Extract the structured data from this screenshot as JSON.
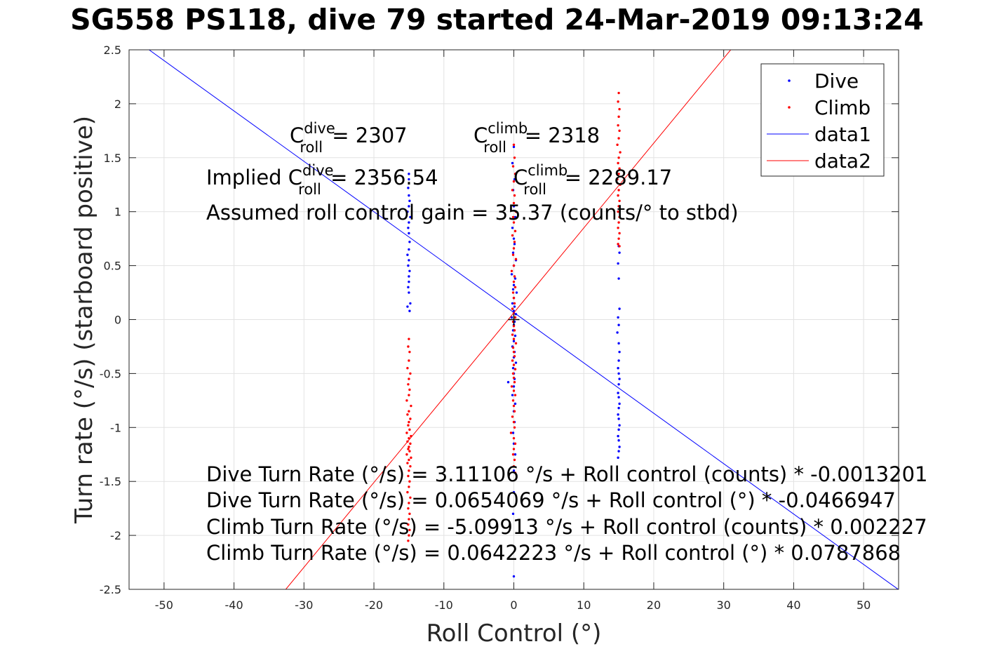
{
  "title": "SG558 PS118, dive 79 started 24-Mar-2019 09:13:24",
  "chart_data": {
    "type": "scatter",
    "title": "SG558 PS118, dive 79 started 24-Mar-2019 09:13:24",
    "xlabel": "Roll Control (°)",
    "ylabel": "Turn rate (°/s) (starboard positive)",
    "xlim": [
      -55,
      55
    ],
    "ylim": [
      -2.5,
      2.5
    ],
    "xticks": [
      -50,
      -40,
      -30,
      -20,
      -10,
      0,
      10,
      20,
      30,
      40,
      50
    ],
    "yticks": [
      2.5,
      2,
      1.5,
      1,
      0.5,
      0,
      -0.5,
      -1,
      -1.5,
      -2,
      -2.5
    ],
    "xtick_labels": [
      "-50",
      "-40",
      "-30",
      "-20",
      "-10",
      "0",
      "10",
      "20",
      "30",
      "40",
      "50"
    ],
    "ytick_labels": [
      "2.5",
      "2",
      "1.5",
      "1",
      "0.5",
      "0",
      "-0.5",
      "-1",
      "-1.5",
      "-2",
      "-2.5"
    ],
    "grid": true,
    "legend_position": "top-right",
    "series": [
      {
        "name": "Dive",
        "kind": "points",
        "color": "#0000ff",
        "points": [
          [
            -15,
            1.35
          ],
          [
            -15,
            1.3
          ],
          [
            -15.1,
            1.22
          ],
          [
            -15,
            1.15
          ],
          [
            -14.9,
            1.1
          ],
          [
            -15,
            1.05
          ],
          [
            -15.2,
            1.0
          ],
          [
            -14.8,
            0.95
          ],
          [
            -15,
            0.9
          ],
          [
            -15.1,
            0.85
          ],
          [
            -15,
            0.8
          ],
          [
            -14.9,
            0.72
          ],
          [
            -15,
            0.65
          ],
          [
            -15.2,
            0.6
          ],
          [
            -15,
            0.55
          ],
          [
            -15.1,
            0.5
          ],
          [
            -14.9,
            0.45
          ],
          [
            -15,
            0.4
          ],
          [
            -15,
            0.35
          ],
          [
            -15.1,
            0.3
          ],
          [
            -15,
            0.25
          ],
          [
            -14.8,
            0.15
          ],
          [
            -15.2,
            0.12
          ],
          [
            -14.9,
            0.08
          ],
          [
            0,
            1.6
          ],
          [
            -0.2,
            1.45
          ],
          [
            0.1,
            1.3
          ],
          [
            -0.1,
            1.2
          ],
          [
            0,
            1.05
          ],
          [
            0.2,
            0.95
          ],
          [
            -0.2,
            0.85
          ],
          [
            0,
            0.75
          ],
          [
            0.1,
            0.7
          ],
          [
            -0.1,
            0.62
          ],
          [
            0.3,
            0.55
          ],
          [
            0,
            0.5
          ],
          [
            -0.3,
            0.42
          ],
          [
            0.2,
            0.38
          ],
          [
            0,
            0.32
          ],
          [
            -0.1,
            0.28
          ],
          [
            0.4,
            0.25
          ],
          [
            0,
            0.2
          ],
          [
            -0.2,
            0.15
          ],
          [
            0.1,
            0.12
          ],
          [
            0,
            0.08
          ],
          [
            0.3,
            0.05
          ],
          [
            -0.3,
            0.02
          ],
          [
            0.1,
            -0.02
          ],
          [
            0,
            -0.05
          ],
          [
            -0.1,
            -0.1
          ],
          [
            0.2,
            -0.15
          ],
          [
            0,
            -0.2
          ],
          [
            -0.2,
            -0.25
          ],
          [
            0.1,
            -0.3
          ],
          [
            0,
            -0.35
          ],
          [
            0.3,
            -0.4
          ],
          [
            -0.1,
            -0.45
          ],
          [
            0,
            -0.5
          ],
          [
            0.1,
            -0.55
          ],
          [
            -0.8,
            -0.58
          ],
          [
            0,
            -0.62
          ],
          [
            -0.2,
            -0.7
          ],
          [
            0.2,
            -0.78
          ],
          [
            0,
            -0.85
          ],
          [
            0.1,
            -0.95
          ],
          [
            -0.1,
            -1.05
          ],
          [
            0,
            -1.15
          ],
          [
            0.2,
            -1.25
          ],
          [
            0,
            -1.4
          ],
          [
            0,
            -1.6
          ],
          [
            -0.1,
            -1.8
          ],
          [
            0,
            -2.38
          ],
          [
            15,
            0.68
          ],
          [
            15.1,
            0.62
          ],
          [
            14.9,
            0.52
          ],
          [
            15,
            0.38
          ],
          [
            15.1,
            0.1
          ],
          [
            14.9,
            0.02
          ],
          [
            15,
            -0.05
          ],
          [
            14.8,
            -0.12
          ],
          [
            15,
            -0.22
          ],
          [
            15.1,
            -0.3
          ],
          [
            15,
            -0.38
          ],
          [
            14.9,
            -0.45
          ],
          [
            15,
            -0.5
          ],
          [
            15.1,
            -0.55
          ],
          [
            15,
            -0.6
          ],
          [
            14.9,
            -0.68
          ],
          [
            15,
            -0.72
          ],
          [
            15.1,
            -0.78
          ],
          [
            15,
            -0.82
          ],
          [
            14.9,
            -0.88
          ],
          [
            15,
            -0.92
          ],
          [
            15.1,
            -0.98
          ],
          [
            15,
            -1.02
          ],
          [
            14.9,
            -1.08
          ],
          [
            15,
            -1.12
          ],
          [
            15.1,
            -1.18
          ],
          [
            15,
            -1.22
          ],
          [
            14.9,
            -1.28
          ]
        ]
      },
      {
        "name": "Climb",
        "kind": "points",
        "color": "#ff0000",
        "points": [
          [
            -15,
            -0.18
          ],
          [
            -15.1,
            -0.25
          ],
          [
            -14.9,
            -0.3
          ],
          [
            -15,
            -0.38
          ],
          [
            -15.2,
            -0.45
          ],
          [
            -14.8,
            -0.5
          ],
          [
            -15,
            -0.55
          ],
          [
            -15.1,
            -0.6
          ],
          [
            -14.9,
            -0.65
          ],
          [
            -15,
            -0.7
          ],
          [
            -15.3,
            -0.75
          ],
          [
            -14.7,
            -0.8
          ],
          [
            -15,
            -0.85
          ],
          [
            -15.2,
            -0.88
          ],
          [
            -14.8,
            -0.92
          ],
          [
            -15,
            -0.95
          ],
          [
            -15.1,
            -0.98
          ],
          [
            -14.9,
            -1.02
          ],
          [
            -15.3,
            -1.05
          ],
          [
            -14.7,
            -1.08
          ],
          [
            -15,
            -1.1
          ],
          [
            -15.2,
            -1.13
          ],
          [
            -14.8,
            -1.15
          ],
          [
            -15,
            -1.18
          ],
          [
            -15.1,
            -1.2
          ],
          [
            -14.9,
            -1.22
          ],
          [
            -15.3,
            -1.25
          ],
          [
            -14.7,
            -1.28
          ],
          [
            -15,
            -1.3
          ],
          [
            -15.2,
            -1.33
          ],
          [
            -14.8,
            -1.36
          ],
          [
            -15,
            -1.4
          ],
          [
            -15.1,
            -1.45
          ],
          [
            -14.9,
            -1.5
          ],
          [
            -15,
            -1.55
          ],
          [
            -15.2,
            -1.6
          ],
          [
            -14.8,
            -1.65
          ],
          [
            -15,
            -1.7
          ],
          [
            -15.1,
            -1.75
          ],
          [
            -14.9,
            -1.8
          ],
          [
            -15,
            -1.85
          ],
          [
            -15.1,
            -1.9
          ],
          [
            -14.9,
            -1.95
          ],
          [
            -15,
            -2.0
          ],
          [
            -15.1,
            -2.05
          ],
          [
            0,
            1.62
          ],
          [
            0.1,
            1.5
          ],
          [
            -0.1,
            1.42
          ],
          [
            0.2,
            1.35
          ],
          [
            0,
            1.28
          ],
          [
            -0.2,
            1.2
          ],
          [
            0.1,
            1.15
          ],
          [
            0,
            1.08
          ],
          [
            0.3,
            1.0
          ],
          [
            -0.1,
            0.95
          ],
          [
            0,
            0.9
          ],
          [
            0.2,
            0.82
          ],
          [
            -0.2,
            0.78
          ],
          [
            0.1,
            0.72
          ],
          [
            0,
            0.66
          ],
          [
            -0.1,
            0.6
          ],
          [
            0.3,
            0.56
          ],
          [
            0,
            0.5
          ],
          [
            -0.3,
            0.45
          ],
          [
            0.1,
            0.4
          ],
          [
            0,
            0.35
          ],
          [
            0.2,
            0.3
          ],
          [
            -0.1,
            0.25
          ],
          [
            0,
            0.2
          ],
          [
            0.1,
            0.15
          ],
          [
            -0.2,
            0.1
          ],
          [
            0,
            0.06
          ],
          [
            0.2,
            0.02
          ],
          [
            -0.1,
            -0.02
          ],
          [
            0,
            -0.06
          ],
          [
            0.1,
            -0.1
          ],
          [
            -0.2,
            -0.14
          ],
          [
            0,
            -0.18
          ],
          [
            0.3,
            -0.22
          ],
          [
            -0.1,
            -0.26
          ],
          [
            0,
            -0.3
          ],
          [
            0.1,
            -0.34
          ],
          [
            -0.2,
            -0.38
          ],
          [
            0,
            -0.42
          ],
          [
            0.2,
            -0.46
          ],
          [
            -0.1,
            -0.5
          ],
          [
            0,
            -0.54
          ],
          [
            0.1,
            -0.58
          ],
          [
            -0.3,
            -0.62
          ],
          [
            0,
            -0.66
          ],
          [
            0.2,
            -0.7
          ],
          [
            -0.1,
            -0.75
          ],
          [
            0,
            -0.8
          ],
          [
            0.1,
            -0.85
          ],
          [
            -0.2,
            -0.9
          ],
          [
            0,
            -0.95
          ],
          [
            0.1,
            -1.0
          ],
          [
            -0.4,
            -1.05
          ],
          [
            0,
            -1.1
          ],
          [
            0.2,
            -1.15
          ],
          [
            0,
            -1.2
          ],
          [
            -0.1,
            -1.25
          ],
          [
            0.1,
            -1.3
          ],
          [
            0,
            -1.36
          ],
          [
            0.2,
            -1.42
          ],
          [
            15,
            2.1
          ],
          [
            14.9,
            2.02
          ],
          [
            15.1,
            1.95
          ],
          [
            15,
            1.88
          ],
          [
            14.9,
            1.8
          ],
          [
            15.1,
            1.75
          ],
          [
            15,
            1.68
          ],
          [
            14.8,
            1.62
          ],
          [
            15.2,
            1.55
          ],
          [
            15,
            1.5
          ],
          [
            14.9,
            1.45
          ],
          [
            15.1,
            1.4
          ],
          [
            15,
            1.35
          ],
          [
            14.8,
            1.3
          ],
          [
            15.2,
            1.25
          ],
          [
            15,
            1.2
          ],
          [
            14.9,
            1.15
          ],
          [
            15.1,
            1.1
          ],
          [
            15,
            1.05
          ],
          [
            14.9,
            1.0
          ],
          [
            15.1,
            0.95
          ],
          [
            15,
            0.9
          ],
          [
            14.9,
            0.85
          ],
          [
            15.1,
            0.8
          ],
          [
            15,
            0.75
          ],
          [
            14.9,
            0.7
          ],
          [
            15.1,
            0.68
          ]
        ]
      },
      {
        "name": "data1",
        "kind": "line",
        "color": "#0000ff",
        "x": [
          -55,
          55
        ],
        "y": [
          2.6336,
          -2.5027
        ]
      },
      {
        "name": "data2",
        "kind": "line",
        "color": "#ff0000",
        "x": [
          -32.6,
          31.0
        ],
        "y": [
          -2.5,
          2.5
        ]
      }
    ],
    "annotations": [
      {
        "base": "C",
        "sub": "roll",
        "sup": "dive",
        "rest": " = 2307"
      },
      {
        "base": "C",
        "sub": "roll",
        "sup": "climb",
        "rest": " = 2318"
      },
      {
        "prefix": "Implied ",
        "base": "C",
        "sub": "roll",
        "sup": "dive",
        "rest": " = 2356.54"
      },
      {
        "base": "C",
        "sub": "roll",
        "sup": "climb",
        "rest": " = 2289.17"
      },
      {
        "text": "Assumed roll control gain = 35.37 (counts/° to stbd)"
      },
      {
        "text": "Dive Turn Rate (°/s) = 3.11106 °/s + Roll control (counts) * -0.0013201"
      },
      {
        "text": "Dive Turn Rate (°/s) = 0.0654069 °/s + Roll control (°) * -0.0466947"
      },
      {
        "text": "Climb Turn Rate (°/s) = -5.09913 °/s + Roll control (counts) * 0.002227"
      },
      {
        "text": "Climb Turn Rate (°/s) = 0.0642223 °/s + Roll control (°) * 0.0787868"
      }
    ],
    "marker": {
      "x": 0,
      "y": 0,
      "symbol": "+",
      "color": "#000000"
    }
  }
}
